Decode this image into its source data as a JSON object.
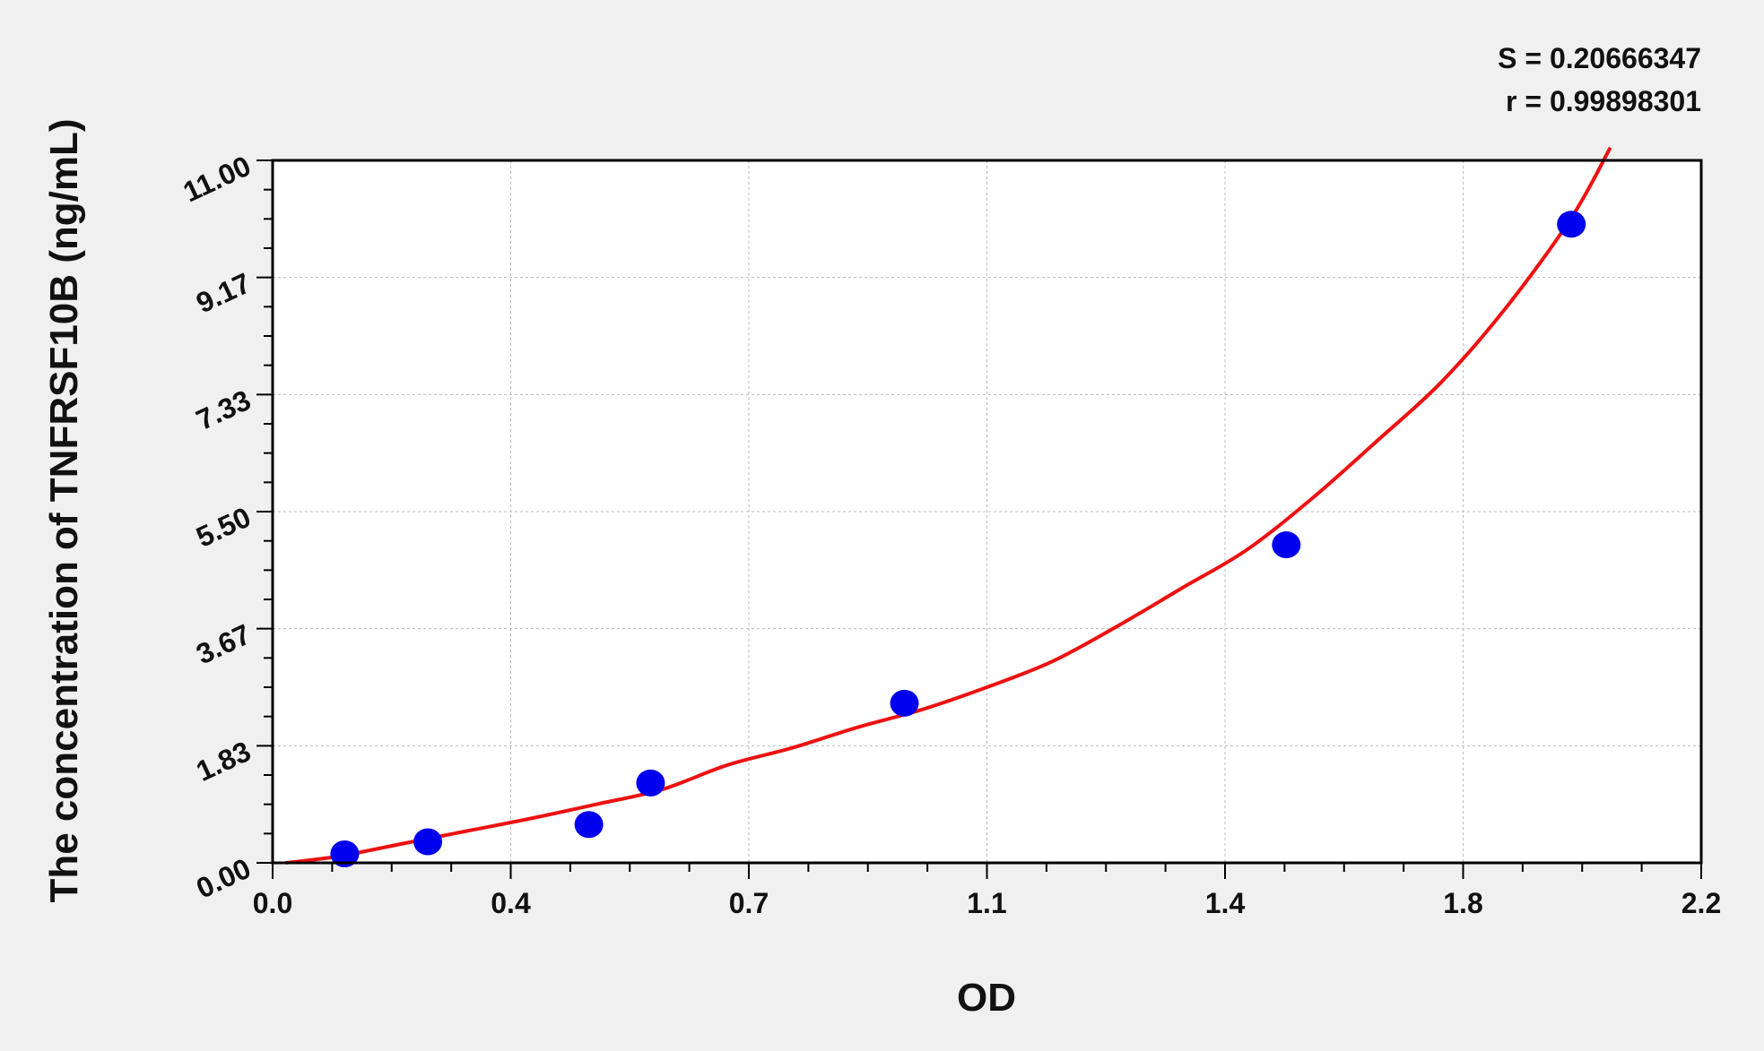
{
  "chart_data": {
    "type": "scatter",
    "xlabel": "OD",
    "ylabel": "The concentration of TNFRSF10B (ng/mL)",
    "xlim": [
      0,
      2.2
    ],
    "ylim": [
      0,
      11
    ],
    "x_ticks": [
      "0.0",
      "0.4",
      "0.7",
      "1.1",
      "1.4",
      "1.8",
      "2.2"
    ],
    "y_ticks": [
      "0.00",
      "1.83",
      "3.67",
      "5.50",
      "7.33",
      "9.17",
      "11.00"
    ],
    "grid": true,
    "annotations": [
      "S = 0.20666347",
      "r = 0.99898301"
    ],
    "points": [
      {
        "x": 0.111,
        "y": 0.14
      },
      {
        "x": 0.239,
        "y": 0.33
      },
      {
        "x": 0.487,
        "y": 0.6
      },
      {
        "x": 0.582,
        "y": 1.25
      },
      {
        "x": 0.973,
        "y": 2.5
      },
      {
        "x": 1.561,
        "y": 4.98
      },
      {
        "x": 2.0,
        "y": 10.0
      }
    ],
    "fit_curve": [
      {
        "x": 0.02,
        "y": 0.0
      },
      {
        "x": 0.1,
        "y": 0.1
      },
      {
        "x": 0.2,
        "y": 0.3
      },
      {
        "x": 0.3,
        "y": 0.5
      },
      {
        "x": 0.4,
        "y": 0.7
      },
      {
        "x": 0.5,
        "y": 0.92
      },
      {
        "x": 0.6,
        "y": 1.15
      },
      {
        "x": 0.7,
        "y": 1.53
      },
      {
        "x": 0.8,
        "y": 1.8
      },
      {
        "x": 0.9,
        "y": 2.12
      },
      {
        "x": 1.0,
        "y": 2.4
      },
      {
        "x": 1.1,
        "y": 2.75
      },
      {
        "x": 1.2,
        "y": 3.15
      },
      {
        "x": 1.3,
        "y": 3.7
      },
      {
        "x": 1.4,
        "y": 4.3
      },
      {
        "x": 1.5,
        "y": 4.9
      },
      {
        "x": 1.6,
        "y": 5.7
      },
      {
        "x": 1.7,
        "y": 6.6
      },
      {
        "x": 1.8,
        "y": 7.53
      },
      {
        "x": 1.9,
        "y": 8.7
      },
      {
        "x": 2.0,
        "y": 10.1
      },
      {
        "x": 2.06,
        "y": 11.2
      }
    ],
    "colors": {
      "points": "#0000ee",
      "curve": "#ee1111",
      "grid": "#bbbbbb",
      "background": "#f0f0f0",
      "plot_background": "#ffffff"
    }
  }
}
